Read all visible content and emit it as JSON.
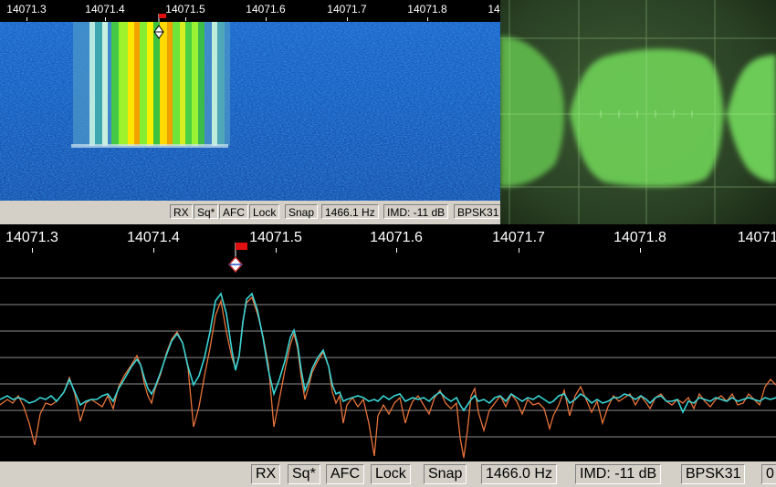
{
  "waterfall": {
    "ruler_labels": [
      "14071.3",
      "14071.4",
      "14071.5",
      "14071.6",
      "14071.7",
      "14071.8",
      "14"
    ],
    "status": {
      "rx": "RX",
      "squelch": "Sq*",
      "afc": "AFC",
      "lock": "Lock",
      "snap": "Snap",
      "frequency": "1466.1 Hz",
      "imd": "IMD: -11 dB",
      "mode": "BPSK31"
    }
  },
  "spectrum": {
    "ruler_labels": [
      "14071.3",
      "14071.4",
      "14071.5",
      "14071.6",
      "14071.7",
      "14071.8",
      "14071"
    ],
    "status": {
      "rx": "RX",
      "squelch": "Sq*",
      "afc": "AFC",
      "lock": "Lock",
      "snap": "Snap",
      "frequency": "1466.0 Hz",
      "imd": "IMD: -11 dB",
      "mode": "BPSK31",
      "overflow": "0"
    }
  },
  "colors": {
    "trace_cyan": "#3ad4d4",
    "trace_orange": "#e8733a",
    "grid": "#8c8c8c",
    "waterfall_bg": "#1e5bb7",
    "scope_green": "#7fe36a",
    "marker_red": "#e01010"
  },
  "icons": {
    "marker": "red-flag-marker-icon",
    "cursor": "diamond-cursor-icon"
  }
}
